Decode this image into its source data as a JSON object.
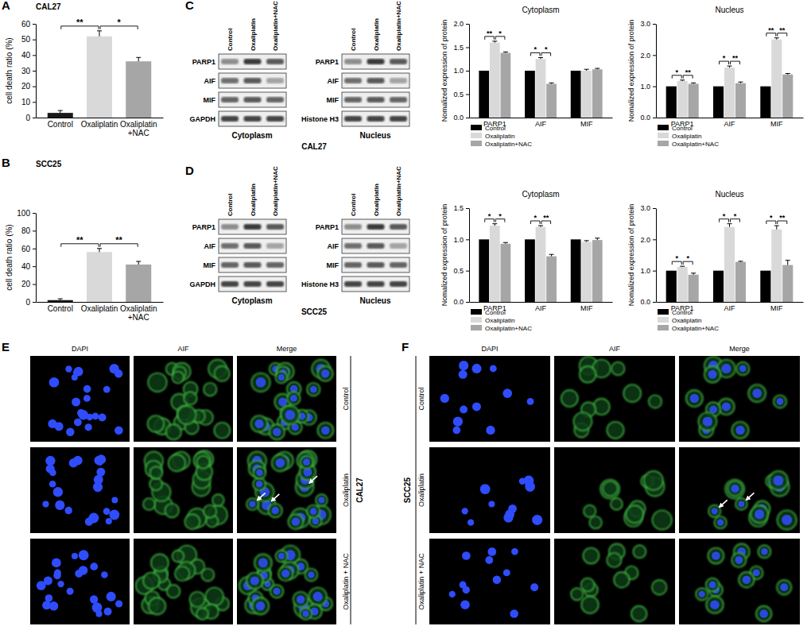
{
  "chart_data": [
    {
      "panel": "A",
      "type": "bar",
      "title": "CAL27",
      "y_label": "cell death ratio (%)",
      "categories": [
        "Control",
        "Oxaliplatin",
        "Oxaliplatin+NAC"
      ],
      "values": [
        3,
        52,
        36
      ],
      "errors": [
        1.5,
        3.5,
        2.5
      ],
      "colors": [
        "#1a1a1a",
        "#d9d9d9",
        "#a6a6a6"
      ],
      "ylim": [
        0,
        60
      ],
      "yticks": [
        0,
        10,
        20,
        30,
        40,
        50,
        60
      ],
      "annotations": [
        {
          "text": "**",
          "from": 0,
          "to": 1
        },
        {
          "text": "*",
          "from": 1,
          "to": 2
        }
      ]
    },
    {
      "panel": "B",
      "type": "bar",
      "title": "SCC25",
      "y_label": "cell death ratio (%)",
      "categories": [
        "Control",
        "Oxaliplatin",
        "Oxaliplatin+NAC"
      ],
      "values": [
        2,
        56,
        42
      ],
      "errors": [
        1.5,
        4,
        3.5
      ],
      "colors": [
        "#1a1a1a",
        "#d9d9d9",
        "#a6a6a6"
      ],
      "ylim": [
        0,
        100
      ],
      "yticks": [
        0,
        20,
        40,
        60,
        80,
        100
      ],
      "annotations": [
        {
          "text": "**",
          "from": 0,
          "to": 1
        },
        {
          "text": "**",
          "from": 1,
          "to": 2
        }
      ]
    },
    {
      "type": "bar",
      "title": "Cytoplasm",
      "y_label": "Nomalized expression of protein",
      "categories": [
        "PARP1",
        "AIF",
        "MIF"
      ],
      "series": [
        {
          "name": "Control",
          "color": "#000000",
          "values": [
            1,
            1,
            1
          ],
          "errors": [
            0,
            0,
            0
          ]
        },
        {
          "name": "Oxaliplatin",
          "color": "#d9d9d9",
          "values": [
            1.6,
            1.25,
            1.0
          ],
          "errors": [
            0.03,
            0.03,
            0.03
          ]
        },
        {
          "name": "Oxaliplatin+NAC",
          "color": "#a6a6a6",
          "values": [
            1.38,
            0.72,
            1.03
          ],
          "errors": [
            0.02,
            0.02,
            0.02
          ]
        }
      ],
      "ylim": [
        0,
        2.0
      ],
      "yticks": [
        {
          "value": 0,
          "label": "0.0"
        },
        {
          "value": 0.5,
          "label": "0.5"
        },
        {
          "value": 1.0,
          "label": "1.0"
        },
        {
          "value": 1.5,
          "label": "1.5"
        },
        {
          "value": 2.0,
          "label": "2.0"
        }
      ],
      "legend": "bottom",
      "annotations": [
        {
          "text": "**",
          "category": 0,
          "from": 0,
          "to": 1
        },
        {
          "text": "*",
          "category": 0,
          "from": 1,
          "to": 2
        },
        {
          "text": "*",
          "category": 1,
          "from": 0,
          "to": 1
        },
        {
          "text": "*",
          "category": 1,
          "from": 1,
          "to": 2
        }
      ]
    },
    {
      "type": "bar",
      "title": "Nucleus",
      "y_label": "Nomalized expression of protein",
      "categories": [
        "PARP1",
        "AIF",
        "MIF"
      ],
      "series": [
        {
          "name": "Control",
          "color": "#000000",
          "values": [
            1,
            1,
            1
          ],
          "errors": [
            0,
            0,
            0
          ]
        },
        {
          "name": "Oxaliplatin",
          "color": "#d9d9d9",
          "values": [
            1.17,
            1.6,
            2.5
          ],
          "errors": [
            0.03,
            0.05,
            0.05
          ]
        },
        {
          "name": "Oxaliplatin+NAC",
          "color": "#a6a6a6",
          "values": [
            1.08,
            1.1,
            1.38
          ],
          "errors": [
            0.03,
            0.04,
            0.03
          ]
        }
      ],
      "ylim": [
        0,
        3.0
      ],
      "yticks": [
        {
          "value": 0,
          "label": "0.0"
        },
        {
          "value": 1.0,
          "label": "1.0"
        },
        {
          "value": 2.0,
          "label": "2.0"
        },
        {
          "value": 3.0,
          "label": "3.0"
        }
      ],
      "legend": "bottom",
      "annotations": [
        {
          "text": "*",
          "category": 0,
          "from": 0,
          "to": 1
        },
        {
          "text": "**",
          "category": 0,
          "from": 1,
          "to": 2
        },
        {
          "text": "*",
          "category": 1,
          "from": 0,
          "to": 1
        },
        {
          "text": "**",
          "category": 1,
          "from": 1,
          "to": 2
        },
        {
          "text": "**",
          "category": 2,
          "from": 0,
          "to": 1
        },
        {
          "text": "**",
          "category": 2,
          "from": 1,
          "to": 2
        }
      ]
    },
    {
      "type": "bar",
      "title": "Cytoplasm",
      "y_label": "Nomalized expression of protein",
      "categories": [
        "PARP1",
        "AIF",
        "MIF"
      ],
      "series": [
        {
          "name": "Control",
          "color": "#000000",
          "values": [
            1,
            1,
            1
          ],
          "errors": [
            0,
            0,
            0
          ]
        },
        {
          "name": "Oxaliplatin",
          "color": "#d9d9d9",
          "values": [
            1.22,
            1.2,
            0.96
          ],
          "errors": [
            0.03,
            0.02,
            0.02
          ]
        },
        {
          "name": "Oxaliplatin+NAC",
          "color": "#a6a6a6",
          "values": [
            0.93,
            0.73,
            0.99
          ],
          "errors": [
            0.02,
            0.03,
            0.03
          ]
        }
      ],
      "ylim": [
        0,
        1.5
      ],
      "yticks": [
        {
          "value": 0,
          "label": "0.0"
        },
        {
          "value": 0.5,
          "label": "0.5"
        },
        {
          "value": 1.0,
          "label": "1.0"
        },
        {
          "value": 1.5,
          "label": "1.5"
        }
      ],
      "legend": "bottom",
      "annotations": [
        {
          "text": "*",
          "category": 0,
          "from": 0,
          "to": 1
        },
        {
          "text": "*",
          "category": 0,
          "from": 1,
          "to": 2
        },
        {
          "text": "*",
          "category": 1,
          "from": 0,
          "to": 1
        },
        {
          "text": "**",
          "category": 1,
          "from": 1,
          "to": 2
        }
      ]
    },
    {
      "type": "bar",
      "title": "Nucleus",
      "y_label": "Nomalized expression of protein",
      "categories": [
        "PARP1",
        "AIF",
        "MIF"
      ],
      "series": [
        {
          "name": "Control",
          "color": "#000000",
          "values": [
            1,
            1,
            1
          ],
          "errors": [
            0,
            0,
            0
          ]
        },
        {
          "name": "Oxaliplatin",
          "color": "#d9d9d9",
          "values": [
            1.12,
            2.4,
            2.32
          ],
          "errors": [
            0.02,
            0.1,
            0.12
          ]
        },
        {
          "name": "Oxaliplatin+NAC",
          "color": "#a6a6a6",
          "values": [
            0.87,
            1.28,
            1.18
          ],
          "errors": [
            0.05,
            0.02,
            0.15
          ]
        }
      ],
      "ylim": [
        0,
        3.0
      ],
      "yticks": [
        {
          "value": 0,
          "label": "0.0"
        },
        {
          "value": 1.0,
          "label": "1.0"
        },
        {
          "value": 2.0,
          "label": "2.0"
        },
        {
          "value": 3.0,
          "label": "3.0"
        }
      ],
      "legend": "bottom",
      "annotations": [
        {
          "text": "*",
          "category": 0,
          "from": 0,
          "to": 1
        },
        {
          "text": "*",
          "category": 0,
          "from": 1,
          "to": 2
        },
        {
          "text": "*",
          "category": 1,
          "from": 0,
          "to": 1
        },
        {
          "text": "*",
          "category": 1,
          "from": 1,
          "to": 2
        },
        {
          "text": "*",
          "category": 2,
          "from": 0,
          "to": 1
        },
        {
          "text": "**",
          "category": 2,
          "from": 1,
          "to": 2
        }
      ]
    }
  ],
  "blots": [
    {
      "panel": "C",
      "cell_line": "CAL27",
      "columns": [
        "Control",
        "Oxaliplatin",
        "Oxaliplatin+NAC"
      ],
      "groups": [
        {
          "name": "Cytoplasm",
          "rows": [
            "PARP1",
            "AIF",
            "MIF",
            "GAPDH"
          ]
        },
        {
          "name": "Nucleus",
          "rows": [
            "PARP1",
            "AIF",
            "MIF",
            "Histone H3"
          ]
        }
      ]
    },
    {
      "panel": "D",
      "cell_line": "SCC25",
      "columns": [
        "Control",
        "Oxaliplatin",
        "Oxaliplatin+NAC"
      ],
      "groups": [
        {
          "name": "Cytoplasm",
          "rows": [
            "PARP1",
            "AIF",
            "MIF",
            "GAPDH"
          ]
        },
        {
          "name": "Nucleus",
          "rows": [
            "PARP1",
            "AIF",
            "MIF",
            "Histone H3"
          ]
        }
      ]
    }
  ],
  "images": [
    {
      "panel": "E",
      "cell_line": "CAL27",
      "columns": [
        "DAPI",
        "AIF",
        "Merge"
      ],
      "rows": [
        "Control",
        "Oxaliplatin",
        "Oxaliplatin + NAC"
      ]
    },
    {
      "panel": "F",
      "cell_line": "SCC25",
      "columns": [
        "DAPI",
        "AIF",
        "Merge"
      ],
      "rows": [
        "Control",
        "Oxaliplatin",
        "Oxaliplatin + NAC"
      ]
    }
  ]
}
